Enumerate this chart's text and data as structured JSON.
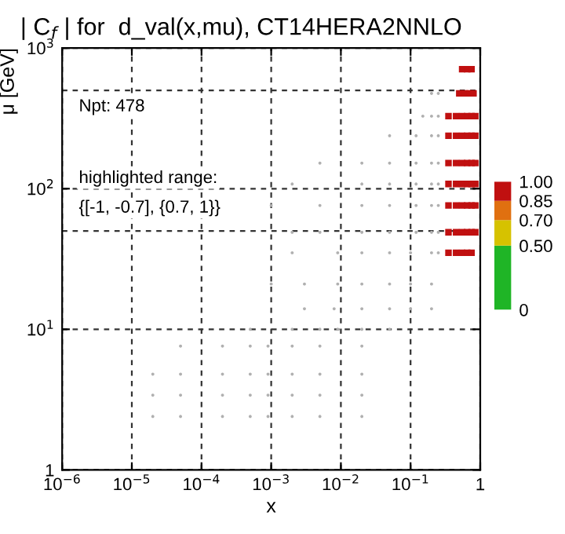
{
  "chart_data": {
    "type": "scatter",
    "title": "| C$_{f}$ | for  d_val(x,mu), CT14HERA2NNLO",
    "xlabel": "x",
    "ylabel": "μ [GeV]",
    "log": "xy",
    "xlim": [
      1e-06,
      1
    ],
    "ylim": [
      1,
      1000
    ],
    "xticks": [
      {
        "value": 1e-06,
        "label": "10$^{−6}$"
      },
      {
        "value": 1e-05,
        "label": "10$^{−5}$"
      },
      {
        "value": 0.0001,
        "label": "10$^{−4}$"
      },
      {
        "value": 0.001,
        "label": "10$^{−3}$"
      },
      {
        "value": 0.01,
        "label": "10$^{−2}$"
      },
      {
        "value": 0.1,
        "label": "10$^{−1}$"
      },
      1
    ],
    "yticks": [
      1,
      {
        "value": 10,
        "label": "10$^{1}$"
      },
      {
        "value": 100,
        "label": "10$^{2}$"
      },
      {
        "value": 1000,
        "label": "10$^{3}$"
      }
    ],
    "grid": true,
    "ref_lines": [
      {
        "axis": "y",
        "value": 50,
        "line_style": "dashed"
      },
      {
        "axis": "y",
        "value": 500,
        "line_style": "dashed"
      }
    ],
    "clim": [
      0,
      1
    ],
    "cticks": [
      {
        "value": 0,
        "label": "0"
      },
      {
        "value": 0.5,
        "label": "0.50"
      },
      {
        "value": 0.7,
        "label": "0.70"
      },
      {
        "value": 0.85,
        "label": "0.85"
      },
      {
        "value": 1.0,
        "label": "1.00"
      }
    ],
    "annotations": [
      "Npt: 478",
      "highlighted range:",
      "{[-1, -0.7], {0.7, 1}}"
    ],
    "series": [
      {
        "color": "#b0b0b0",
        "marker": "circle",
        "x": [
          2e-05,
          5e-05,
          0.0002,
          0.0005,
          0.0009,
          0.002,
          0.005,
          0.02,
          2e-05,
          5e-05,
          0.0002,
          0.0005,
          0.0009,
          0.002,
          0.005,
          0.02,
          2e-05,
          5e-05,
          0.0002,
          0.0005,
          0.0009,
          0.002,
          0.005,
          0.02,
          5e-05,
          0.0002,
          0.0005,
          0.0009,
          0.002,
          0.005,
          0.02,
          0.0005,
          0.002,
          0.005,
          0.009,
          0.02,
          0.05,
          0.003,
          0.008,
          0.02,
          0.05,
          0.1,
          0.2,
          0.001,
          0.003,
          0.009,
          0.02,
          0.05,
          0.1,
          0.2,
          0.002,
          0.009,
          0.02,
          0.05,
          0.1,
          0.2,
          0.25,
          0.002,
          0.005,
          0.02,
          0.05,
          0.12,
          0.2,
          0.25,
          0.001,
          0.005,
          0.02,
          0.05,
          0.12,
          0.2,
          0.25,
          0.002,
          0.02,
          0.05,
          0.12,
          0.2,
          0.25,
          0.005,
          0.02,
          0.05,
          0.12,
          0.2,
          0.25,
          0.05,
          0.12,
          0.2,
          0.25,
          0.15,
          0.2,
          0.25,
          0.2,
          0.25
        ],
        "values": [
          2.4,
          2.4,
          2.4,
          2.4,
          2.4,
          2.4,
          2.4,
          2.4,
          3.4,
          3.4,
          3.4,
          3.4,
          3.4,
          3.4,
          3.4,
          3.4,
          4.8,
          4.8,
          4.8,
          4.8,
          4.8,
          4.8,
          4.8,
          4.8,
          7.6,
          7.6,
          7.6,
          7.6,
          7.6,
          7.6,
          7.6,
          10,
          10,
          10,
          10,
          10,
          10,
          14,
          14,
          14,
          14,
          14,
          14,
          21,
          21,
          21,
          21,
          21,
          21,
          21,
          35,
          35,
          35,
          35,
          35,
          35,
          35,
          49,
          49,
          49,
          49,
          49,
          49,
          49,
          76,
          76,
          76,
          76,
          76,
          76,
          76,
          108,
          108,
          108,
          108,
          108,
          108,
          152,
          152,
          152,
          152,
          152,
          152,
          238,
          238,
          238,
          238,
          328,
          328,
          328,
          476,
          476
        ]
      },
      {
        "color": "#c01010",
        "marker": "square",
        "x": [
          0.35,
          0.45,
          0.55,
          0.65,
          0.75,
          0.35,
          0.45,
          0.55,
          0.65,
          0.75,
          0.85,
          0.35,
          0.45,
          0.55,
          0.65,
          0.75,
          0.85,
          0.35,
          0.45,
          0.55,
          0.65,
          0.75,
          0.85,
          0.35,
          0.45,
          0.55,
          0.65,
          0.75,
          0.85,
          0.35,
          0.45,
          0.55,
          0.65,
          0.75,
          0.85,
          0.35,
          0.45,
          0.55,
          0.65,
          0.75,
          0.85,
          0.5,
          0.6,
          0.7,
          0.8,
          0.55,
          0.65,
          0.75
        ],
        "values": [
          35,
          35,
          35,
          35,
          35,
          49,
          49,
          49,
          49,
          49,
          49,
          76,
          76,
          76,
          76,
          76,
          76,
          108,
          108,
          108,
          108,
          108,
          108,
          152,
          152,
          152,
          152,
          152,
          152,
          238,
          238,
          238,
          238,
          238,
          238,
          328,
          328,
          328,
          328,
          328,
          328,
          476,
          476,
          476,
          476,
          708,
          708,
          708
        ]
      }
    ]
  }
}
